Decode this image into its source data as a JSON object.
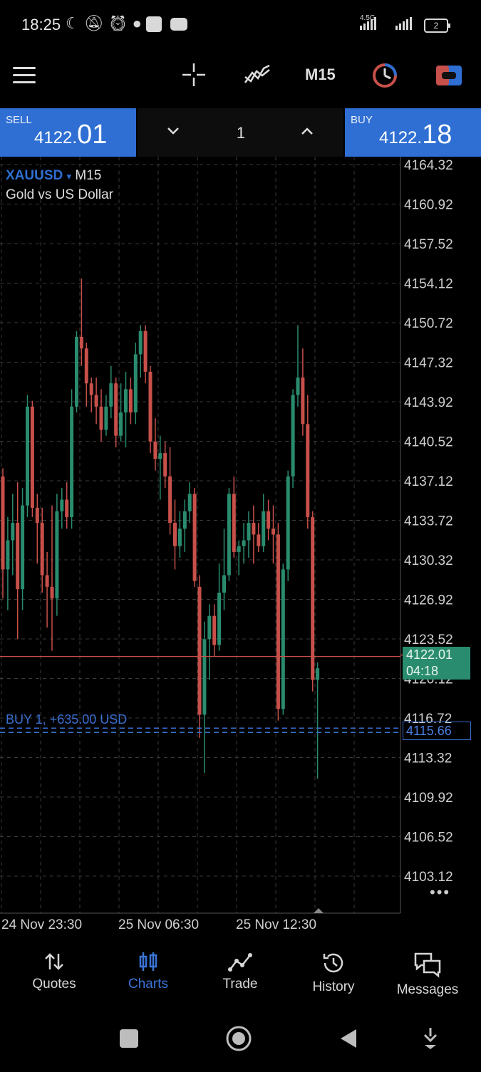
{
  "status_bar": {
    "time": "18:25",
    "network_tag": "4.5G",
    "battery": "2"
  },
  "toolbar": {
    "timeframe": "M15"
  },
  "quote": {
    "sell_label": "SELL",
    "sell_price_small": "4122.",
    "sell_price_big": "01",
    "buy_label": "BUY",
    "buy_price_small": "4122.",
    "buy_price_big": "18",
    "volume": "1"
  },
  "chart": {
    "symbol": "XAUUSD",
    "symbol_arrow": "▾",
    "timeframe": "M15",
    "description": "Gold vs US Dollar",
    "current_price": "4122.01",
    "countdown": "04:18",
    "position_label": "BUY 1, +635.00 USD",
    "position_price": "4115.66",
    "more": "•••"
  },
  "chart_data": {
    "type": "candlestick",
    "y_ticks": [
      "4164.32",
      "4160.92",
      "4157.52",
      "4154.12",
      "4150.72",
      "4147.32",
      "4143.92",
      "4140.52",
      "4137.12",
      "4133.72",
      "4130.32",
      "4126.92",
      "4123.52",
      "4120.12",
      "4116.72",
      "4113.32",
      "4109.92",
      "4106.52",
      "4103.12"
    ],
    "x_ticks": [
      "24 Nov 23:30",
      "25 Nov 06:30",
      "25 Nov 12:30"
    ],
    "ylim": [
      4101.3,
      4166.0
    ],
    "grid": true,
    "bid_line": 4122.01,
    "position_line": 4115.66,
    "colors": {
      "up": "#2a8c6e",
      "down": "#c8504a",
      "grid": "#3a3a3a",
      "position": "#3a6fd1"
    },
    "candles": [
      [
        4137.5,
        4138.2,
        4127.0,
        4129.5
      ],
      [
        4129.5,
        4134.0,
        4126.0,
        4132.0
      ],
      [
        4132.0,
        4136.0,
        4129.0,
        4133.5
      ],
      [
        4133.5,
        4137.0,
        4123.5,
        4127.8
      ],
      [
        4127.8,
        4136.5,
        4126.0,
        4135.0
      ],
      [
        4135.0,
        4144.5,
        4134.0,
        4143.5
      ],
      [
        4143.5,
        4144.0,
        4134.0,
        4134.8
      ],
      [
        4134.8,
        4136.0,
        4130.0,
        4133.5
      ],
      [
        4133.5,
        4134.8,
        4127.5,
        4129.0
      ],
      [
        4129.0,
        4131.0,
        4124.5,
        4128.0
      ],
      [
        4128.0,
        4135.0,
        4122.5,
        4127.0
      ],
      [
        4127.0,
        4136.0,
        4125.5,
        4134.5
      ],
      [
        4134.5,
        4136.5,
        4133.0,
        4135.5
      ],
      [
        4135.5,
        4137.0,
        4133.0,
        4134.0
      ],
      [
        4134.0,
        4145.0,
        4133.0,
        4143.5
      ],
      [
        4143.5,
        4150.0,
        4143.0,
        4149.5
      ],
      [
        4149.5,
        4154.5,
        4147.0,
        4148.5
      ],
      [
        4148.5,
        4149.0,
        4143.5,
        4145.5
      ],
      [
        4145.5,
        4146.0,
        4143.0,
        4144.5
      ],
      [
        4144.5,
        4146.0,
        4142.0,
        4143.5
      ],
      [
        4143.5,
        4145.0,
        4140.5,
        4141.5
      ],
      [
        4141.5,
        4144.5,
        4141.0,
        4143.5
      ],
      [
        4143.5,
        4147.0,
        4142.5,
        4145.5
      ],
      [
        4145.5,
        4146.0,
        4140.0,
        4141.0
      ],
      [
        4141.0,
        4145.5,
        4140.5,
        4143.0
      ],
      [
        4143.0,
        4146.5,
        4140.0,
        4145.0
      ],
      [
        4145.0,
        4146.0,
        4142.0,
        4143.0
      ],
      [
        4143.0,
        4149.0,
        4142.0,
        4148.0
      ],
      [
        4148.0,
        4150.5,
        4146.0,
        4150.0
      ],
      [
        4150.0,
        4150.5,
        4145.5,
        4146.5
      ],
      [
        4146.5,
        4147.0,
        4139.5,
        4140.5
      ],
      [
        4140.5,
        4142.5,
        4138.0,
        4139.0
      ],
      [
        4139.0,
        4141.0,
        4135.5,
        4139.5
      ],
      [
        4139.5,
        4140.5,
        4136.5,
        4137.5
      ],
      [
        4137.5,
        4140.0,
        4132.5,
        4133.5
      ],
      [
        4133.5,
        4135.5,
        4129.5,
        4131.5
      ],
      [
        4131.5,
        4134.5,
        4130.5,
        4133.0
      ],
      [
        4133.0,
        4135.5,
        4131.0,
        4134.5
      ],
      [
        4134.5,
        4137.0,
        4133.5,
        4136.0
      ],
      [
        4136.0,
        4136.5,
        4128.0,
        4128.5
      ],
      [
        4128.0,
        4129.0,
        4115.0,
        4117.0
      ],
      [
        4117.0,
        4125.0,
        4112.0,
        4123.5
      ],
      [
        4123.5,
        4126.5,
        4120.0,
        4125.5
      ],
      [
        4125.5,
        4126.5,
        4122.0,
        4123.0
      ],
      [
        4123.0,
        4130.0,
        4122.5,
        4127.5
      ],
      [
        4127.5,
        4133.0,
        4126.0,
        4129.0
      ],
      [
        4129.0,
        4136.5,
        4128.5,
        4136.0
      ],
      [
        4136.0,
        4137.5,
        4130.5,
        4131.0
      ],
      [
        4131.0,
        4132.0,
        4129.0,
        4131.5
      ],
      [
        4131.5,
        4133.5,
        4130.0,
        4132.0
      ],
      [
        4132.0,
        4134.5,
        4130.5,
        4133.5
      ],
      [
        4133.5,
        4135.0,
        4130.0,
        4132.5
      ],
      [
        4132.5,
        4133.5,
        4131.0,
        4131.5
      ],
      [
        4131.5,
        4136.0,
        4131.0,
        4134.5
      ],
      [
        4134.5,
        4135.5,
        4132.0,
        4133.0
      ],
      [
        4133.0,
        4135.0,
        4130.0,
        4132.5
      ],
      [
        4132.5,
        4133.5,
        4116.5,
        4117.5
      ],
      [
        4117.5,
        4130.0,
        4117.0,
        4129.5
      ],
      [
        4129.5,
        4138.0,
        4128.5,
        4137.5
      ],
      [
        4137.5,
        4145.0,
        4136.5,
        4144.5
      ],
      [
        4144.5,
        4150.5,
        4143.5,
        4146.0
      ],
      [
        4146.0,
        4148.5,
        4141.0,
        4142.0
      ],
      [
        4142.0,
        4144.5,
        4133.0,
        4134.0
      ],
      [
        4134.0,
        4134.5,
        4119.0,
        4120.0
      ],
      [
        4120.0,
        4121.5,
        4111.5,
        4121.0
      ]
    ]
  },
  "bottom_nav": {
    "items": [
      {
        "label": "Quotes"
      },
      {
        "label": "Charts"
      },
      {
        "label": "Trade"
      },
      {
        "label": "History"
      },
      {
        "label": "Messages"
      }
    ]
  }
}
